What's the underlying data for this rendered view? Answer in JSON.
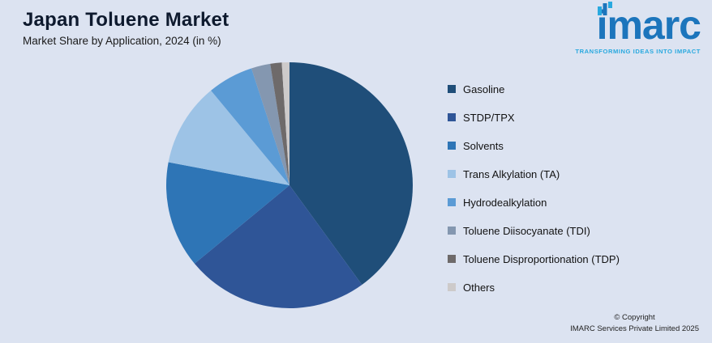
{
  "header": {
    "title": "Japan Toluene Market",
    "subtitle": "Market Share by Application, 2024 (in %)"
  },
  "logo": {
    "name": "imarc",
    "tagline": "TRANSFORMING IDEAS INTO IMPACT"
  },
  "chart_data": {
    "type": "pie",
    "title": "Japan Toluene Market",
    "subtitle": "Market Share by Application, 2024 (in %)",
    "unit": "%",
    "legend_position": "right",
    "start_angle_deg": 0,
    "direction": "clockwise",
    "categories": [
      "Gasoline",
      "STDP/TPX",
      "Solvents",
      "Trans Alkylation (TA)",
      "Hydrodealkylation",
      "Toluene Diisocyanate (TDI)",
      "Toluene Disproportionation (TDP)",
      "Others"
    ],
    "values": [
      40,
      24,
      14,
      11,
      6,
      2.5,
      1.5,
      1
    ],
    "colors": [
      "#1f4e79",
      "#2f5597",
      "#2e75b6",
      "#9dc3e6",
      "#5b9bd5",
      "#8497b0",
      "#6e6a6a",
      "#cdcaca"
    ]
  },
  "footer": {
    "line1": "© Copyright",
    "line2": "IMARC Services Private Limited 2025"
  },
  "colors": {
    "background": "#dce3f1",
    "title_text": "#0e1a2e",
    "logo_blue": "#1c75bc",
    "logo_teal": "#29a9df"
  }
}
